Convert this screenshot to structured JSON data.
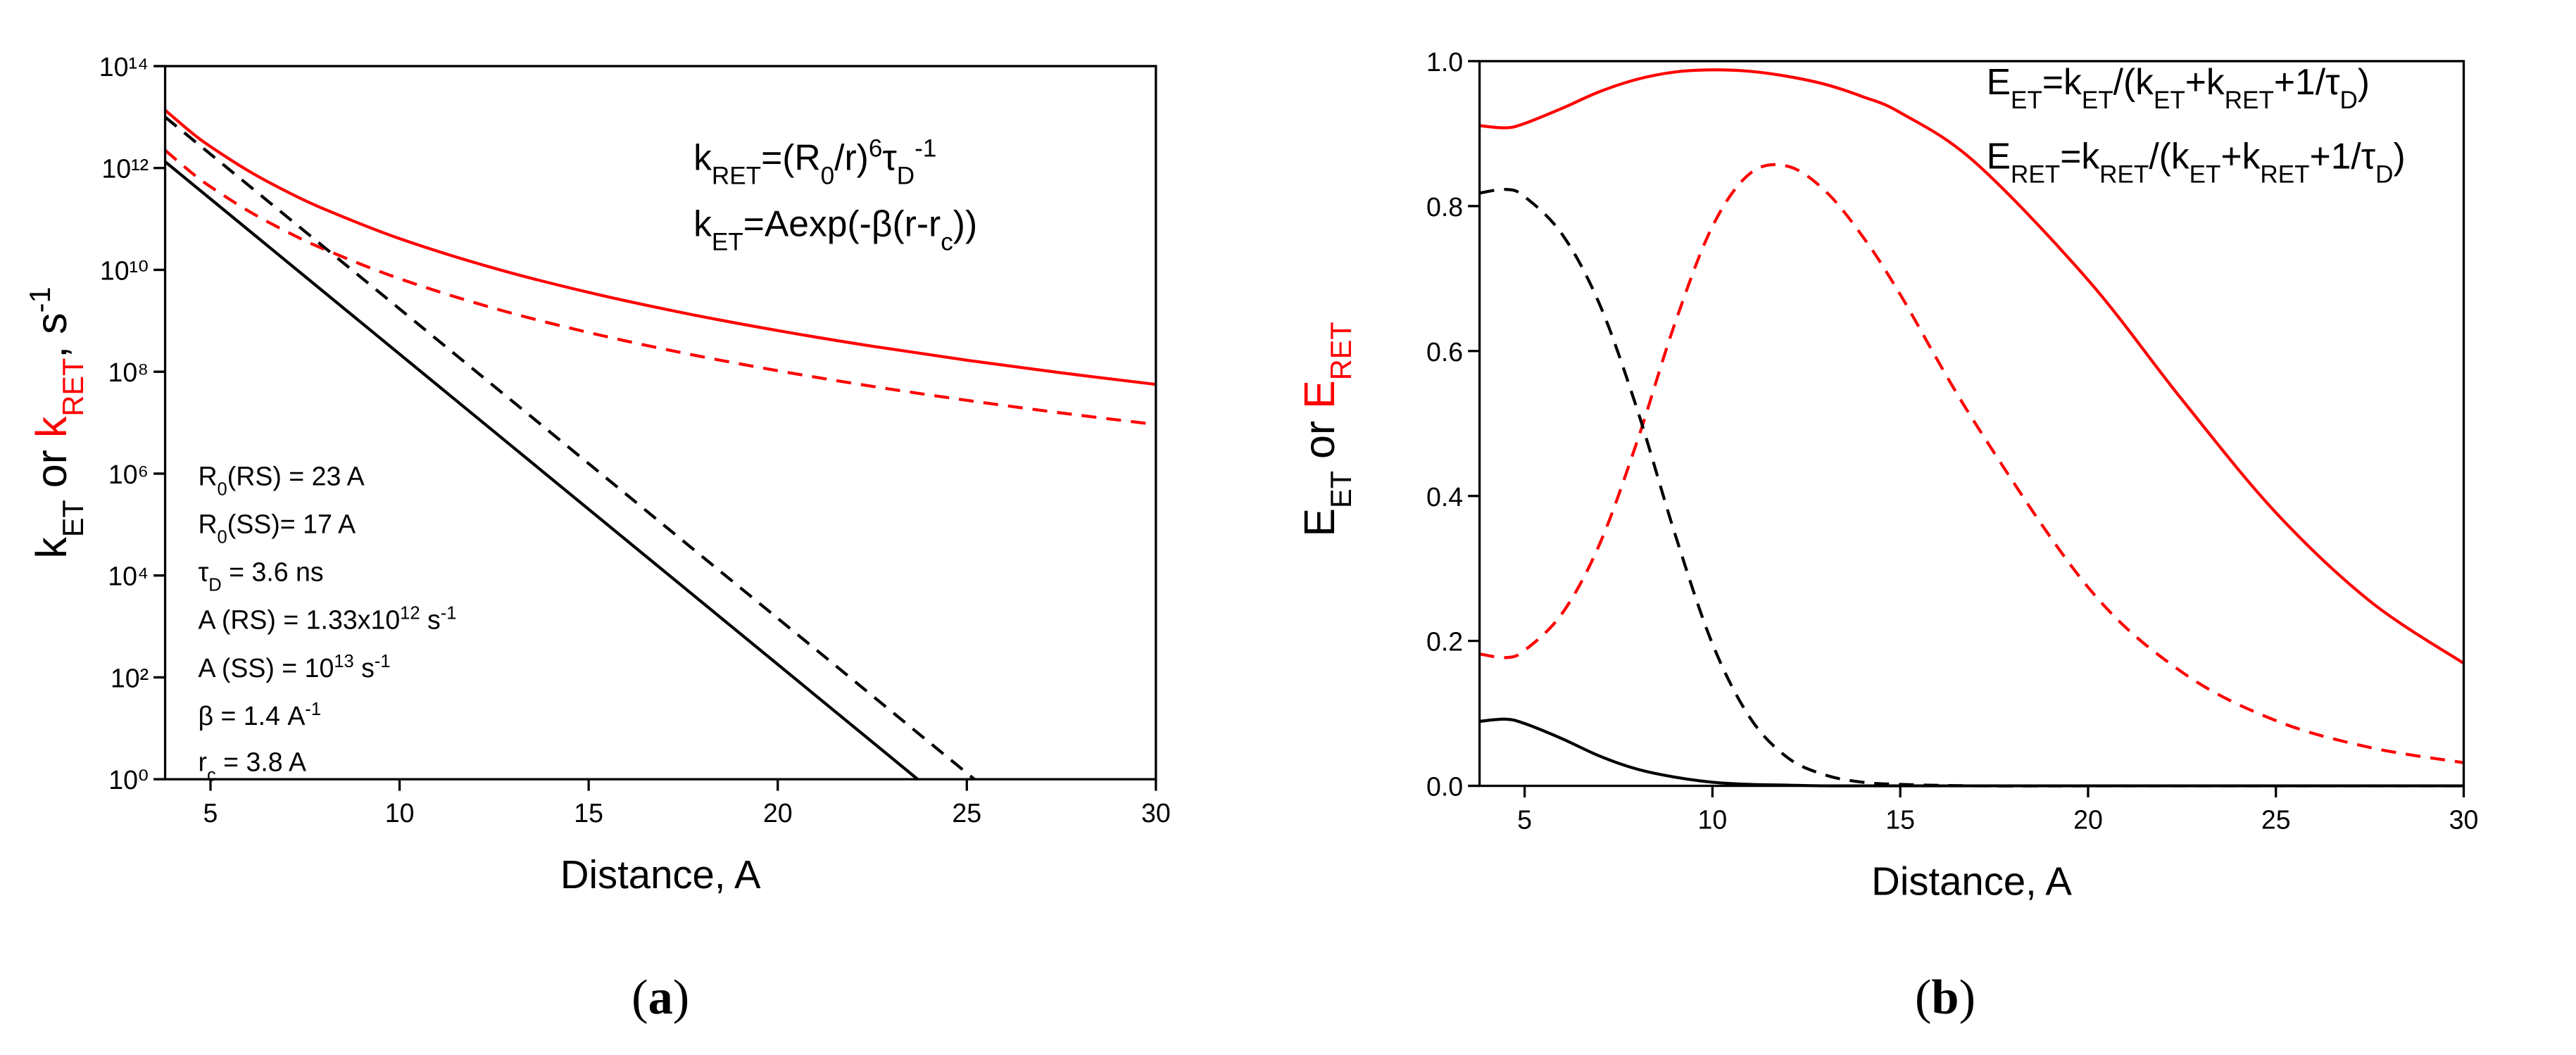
{
  "chart_data": [
    {
      "type": "line",
      "panel_label": [
        {
          "text": "("
        },
        {
          "text": "a",
          "weight": "bold"
        },
        {
          "text": ")"
        }
      ],
      "xlabel": "Distance, A",
      "ylabel": [
        {
          "text": "k"
        },
        {
          "text": "ET",
          "shift": "sub"
        },
        {
          "text": " or "
        },
        {
          "text": "k",
          "color": "#ff0000"
        },
        {
          "text": "RET",
          "shift": "sub",
          "color": "#ff0000"
        },
        {
          "text": ", s"
        },
        {
          "text": "-1",
          "shift": "super"
        }
      ],
      "annotations": [
        [
          {
            "text": "k"
          },
          {
            "text": "RET",
            "shift": "sub"
          },
          {
            "text": "=(R"
          },
          {
            "text": "0",
            "shift": "sub"
          },
          {
            "text": "/r)"
          },
          {
            "text": "6",
            "shift": "super"
          },
          {
            "text": "τ"
          },
          {
            "text": "D",
            "shift": "sub"
          },
          {
            "text": "-1",
            "shift": "super"
          }
        ],
        [
          {
            "text": "k"
          },
          {
            "text": "ET",
            "shift": "sub"
          },
          {
            "text": "=Aexp(-β(r-r"
          },
          {
            "text": "c",
            "shift": "sub"
          },
          {
            "text": "))"
          }
        ],
        [
          {
            "text": "R"
          },
          {
            "text": "0",
            "shift": "sub"
          },
          {
            "text": "(RS) = 23 A"
          }
        ],
        [
          {
            "text": "R"
          },
          {
            "text": "0",
            "shift": "sub"
          },
          {
            "text": "(SS)= 17 A"
          }
        ],
        [
          {
            "text": "τ"
          },
          {
            "text": "D",
            "shift": "sub"
          },
          {
            "text": " = 3.6 ns"
          }
        ],
        [
          {
            "text": "A (RS) = 1.33x10"
          },
          {
            "text": "12",
            "shift": "super"
          },
          {
            "text": " s"
          },
          {
            "text": "-1",
            "shift": "super"
          }
        ],
        [
          {
            "text": "A (SS) = 10"
          },
          {
            "text": "13",
            "shift": "super"
          },
          {
            "text": " s"
          },
          {
            "text": "-1",
            "shift": "super"
          }
        ],
        [
          {
            "text": "β = 1.4 A"
          },
          {
            "text": "-1",
            "shift": "super"
          }
        ],
        [
          {
            "text": "r"
          },
          {
            "text": "c",
            "shift": "sub"
          },
          {
            "text": " = 3.8 A"
          }
        ]
      ],
      "log_y": true,
      "xlim": [
        3.8,
        30
      ],
      "xticks": [
        5,
        10,
        15,
        20,
        25,
        30
      ],
      "ylim": [
        1,
        100000000000000
      ],
      "yticks": [
        {
          "value": 1,
          "label": "10⁰"
        },
        {
          "value": 100,
          "label": "10²"
        },
        {
          "value": 10000,
          "label": "10⁴"
        },
        {
          "value": 1000000,
          "label": "10⁶"
        },
        {
          "value": 100000000,
          "label": "10⁸"
        },
        {
          "value": 10000000000,
          "label": "10¹⁰"
        },
        {
          "value": 1000000000000,
          "label": "10¹²"
        },
        {
          "value": 100000000000000,
          "label": "10¹⁴"
        }
      ],
      "series": [
        {
          "color": "#ff0000",
          "style": "solid",
          "x": [
            3.8,
            4.5,
            5,
            6,
            7,
            8,
            10,
            12.5,
            15,
            17.5,
            20,
            22.5,
            25,
            27.5,
            30
          ],
          "values": [
            13660000000000,
            4952000000000,
            2632000000000,
            881300000000,
            349500000000,
            156900000000,
            41120000000,
            10780000000,
            3610000000,
            1432000000,
            643000000,
            317000000,
            168500000,
            95100000,
            56400000
          ]
        },
        {
          "color": "#ff0000",
          "style": "dashed",
          "x": [
            3.8,
            4.5,
            5,
            6,
            7,
            8,
            10,
            12.5,
            15,
            17.5,
            20,
            22.5,
            25,
            27.5,
            30
          ],
          "values": [
            2227000000000,
            807500000000,
            429200000000,
            143700000000,
            56990000000,
            25580000000,
            6705000000,
            1758000000,
            589000000,
            233500000,
            104800000,
            51700000,
            27470000,
            15510000,
            9200000
          ]
        },
        {
          "color": "#000000",
          "style": "solid",
          "x": [
            3.8,
            23.7
          ],
          "values": [
            1330000000000,
            1
          ]
        },
        {
          "color": "#000000",
          "style": "dashed",
          "x": [
            3.8,
            25.2
          ],
          "values": [
            10000000000000,
            1
          ]
        }
      ]
    },
    {
      "type": "line",
      "panel_label": [
        {
          "text": "("
        },
        {
          "text": "b",
          "weight": "bold"
        },
        {
          "text": ")"
        }
      ],
      "xlabel": "Distance, A",
      "ylabel": [
        {
          "text": "E"
        },
        {
          "text": "ET",
          "shift": "sub"
        },
        {
          "text": " or "
        },
        {
          "text": "E",
          "color": "#ff0000"
        },
        {
          "text": "RET",
          "shift": "sub",
          "color": "#ff0000"
        }
      ],
      "annotations": [
        [
          {
            "text": "E"
          },
          {
            "text": "ET",
            "shift": "sub"
          },
          {
            "text": "=k"
          },
          {
            "text": "ET",
            "shift": "sub"
          },
          {
            "text": "/(k"
          },
          {
            "text": "ET",
            "shift": "sub"
          },
          {
            "text": "+k"
          },
          {
            "text": "RET",
            "shift": "sub"
          },
          {
            "text": "+1/τ"
          },
          {
            "text": "D",
            "shift": "sub"
          },
          {
            "text": ")"
          }
        ],
        [
          {
            "text": "E"
          },
          {
            "text": "RET",
            "shift": "sub"
          },
          {
            "text": "=k"
          },
          {
            "text": "RET",
            "shift": "sub"
          },
          {
            "text": "/(k"
          },
          {
            "text": "ET",
            "shift": "sub"
          },
          {
            "text": "+k"
          },
          {
            "text": "RET",
            "shift": "sub"
          },
          {
            "text": "+1/τ"
          },
          {
            "text": "D",
            "shift": "sub"
          },
          {
            "text": ")"
          }
        ]
      ],
      "log_y": false,
      "xlim": [
        3.8,
        30
      ],
      "xticks": [
        5,
        10,
        15,
        20,
        25,
        30
      ],
      "ylim": [
        0,
        1
      ],
      "yticks": [
        {
          "value": 0,
          "label": "0.0"
        },
        {
          "value": 0.2,
          "label": "0.2"
        },
        {
          "value": 0.4,
          "label": "0.4"
        },
        {
          "value": 0.6,
          "label": "0.6"
        },
        {
          "value": 0.8,
          "label": "0.8"
        },
        {
          "value": 1,
          "label": "1.0"
        }
      ],
      "series": [
        {
          "color": "#ff0000",
          "style": "solid",
          "x": [
            3.8,
            4.5,
            5,
            6,
            7,
            8,
            9,
            10,
            11,
            12,
            13,
            14,
            15,
            17,
            20,
            22.5,
            25,
            27.5,
            30
          ],
          "values": [
            0.911,
            0.908,
            0.914,
            0.935,
            0.958,
            0.975,
            0.985,
            0.988,
            0.986,
            0.979,
            0.968,
            0.951,
            0.929,
            0.86,
            0.698,
            0.533,
            0.377,
            0.255,
            0.169
          ]
        },
        {
          "color": "#ff0000",
          "style": "dashed",
          "x": [
            3.8,
            4.5,
            5,
            6,
            7,
            8,
            9,
            10,
            11,
            12,
            13,
            14,
            15,
            17,
            20,
            22.5,
            25,
            27.5,
            30
          ],
          "values": [
            0.182,
            0.177,
            0.187,
            0.238,
            0.334,
            0.476,
            0.638,
            0.772,
            0.845,
            0.855,
            0.821,
            0.758,
            0.678,
            0.5,
            0.274,
            0.157,
            0.09,
            0.053,
            0.032
          ]
        },
        {
          "color": "#000000",
          "style": "solid",
          "x": [
            3.8,
            4.5,
            5,
            6,
            7,
            8,
            9,
            10,
            11,
            12,
            13,
            14,
            15,
            17,
            20,
            22.5,
            25,
            27.5,
            30
          ],
          "values": [
            0.089,
            0.092,
            0.086,
            0.065,
            0.041,
            0.023,
            0.012,
            0.005,
            0.002,
            0.001,
            0,
            0,
            0,
            0,
            0,
            0,
            0,
            0,
            0
          ]
        },
        {
          "color": "#000000",
          "style": "dashed",
          "x": [
            3.8,
            4.5,
            5,
            6,
            7,
            8,
            9,
            10,
            11,
            12,
            13,
            14,
            15,
            17,
            20,
            22.5,
            25,
            27.5,
            30
          ],
          "values": [
            0.818,
            0.823,
            0.813,
            0.761,
            0.664,
            0.519,
            0.348,
            0.196,
            0.094,
            0.039,
            0.015,
            0.005,
            0.002,
            0,
            0,
            0,
            0,
            0,
            0
          ]
        }
      ]
    }
  ]
}
